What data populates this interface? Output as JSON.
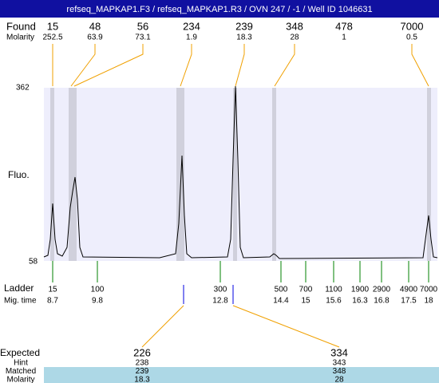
{
  "header": {
    "title": "refseq_MAPKAP1.F3 / refseq_MAPKAP1.R3 / OVN 247 / -1 / Well ID 1046631"
  },
  "found": {
    "label": "Found",
    "sizes": [
      15,
      48,
      56,
      234,
      239,
      348,
      478,
      7000
    ],
    "molarity_label": "Molarity",
    "molarity": [
      252.5,
      63.9,
      73.1,
      1.9,
      18.3,
      28,
      1,
      0.5
    ]
  },
  "axis": {
    "label": "Fluo.",
    "max": 362,
    "min": 58
  },
  "ladder": {
    "label": "Ladder",
    "sizes": [
      15,
      100,
      300,
      500,
      700,
      1100,
      1900,
      2900,
      4900,
      7000
    ],
    "time_label": "Mig. time",
    "times": [
      8.7,
      9.8,
      12.8,
      14.4,
      15,
      15.6,
      16.3,
      16.8,
      17.5,
      18
    ]
  },
  "expected": {
    "label": "Expected",
    "values": [
      226,
      334
    ],
    "rows": [
      {
        "label": "Hint",
        "values": [
          238,
          343
        ]
      },
      {
        "label": "Matched",
        "values": [
          239,
          348
        ]
      },
      {
        "label": "Molarity",
        "values": [
          18.3,
          28
        ]
      }
    ]
  }
}
